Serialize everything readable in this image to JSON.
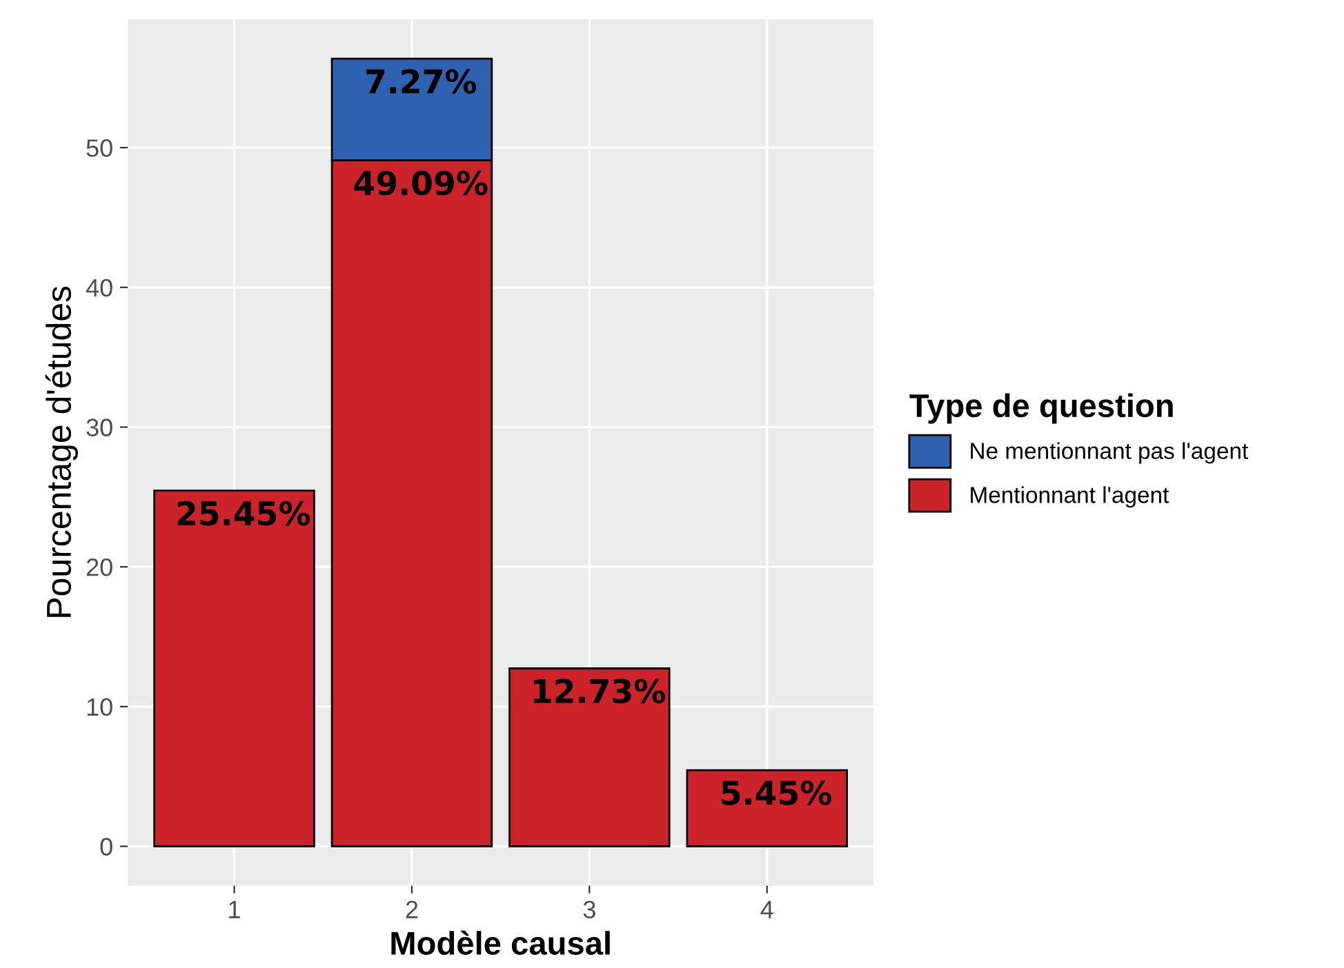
{
  "chart_data": {
    "type": "bar",
    "stacked": true,
    "xlabel": "Modèle causal",
    "ylabel": "Pourcentage d'études",
    "legend_title": "Type de question",
    "legend": "right",
    "grid": true,
    "categories": [
      "1",
      "2",
      "3",
      "4"
    ],
    "ylim": [
      -2.82,
      59.18
    ],
    "yticks": [
      0,
      10,
      20,
      30,
      40,
      50
    ],
    "series": [
      {
        "name": "Mentionnant l'agent",
        "color": "#cc2229",
        "values": [
          25.45,
          49.09,
          12.73,
          5.45
        ],
        "value_labels": [
          "25.45%",
          "49.09%",
          "12.73%",
          "5.45%"
        ]
      },
      {
        "name": "Ne mentionnant pas l'agent",
        "color": "#2e62b0",
        "values": [
          null,
          7.27,
          null,
          null
        ],
        "value_labels": [
          null,
          "7.27%",
          null,
          null
        ]
      }
    ]
  }
}
